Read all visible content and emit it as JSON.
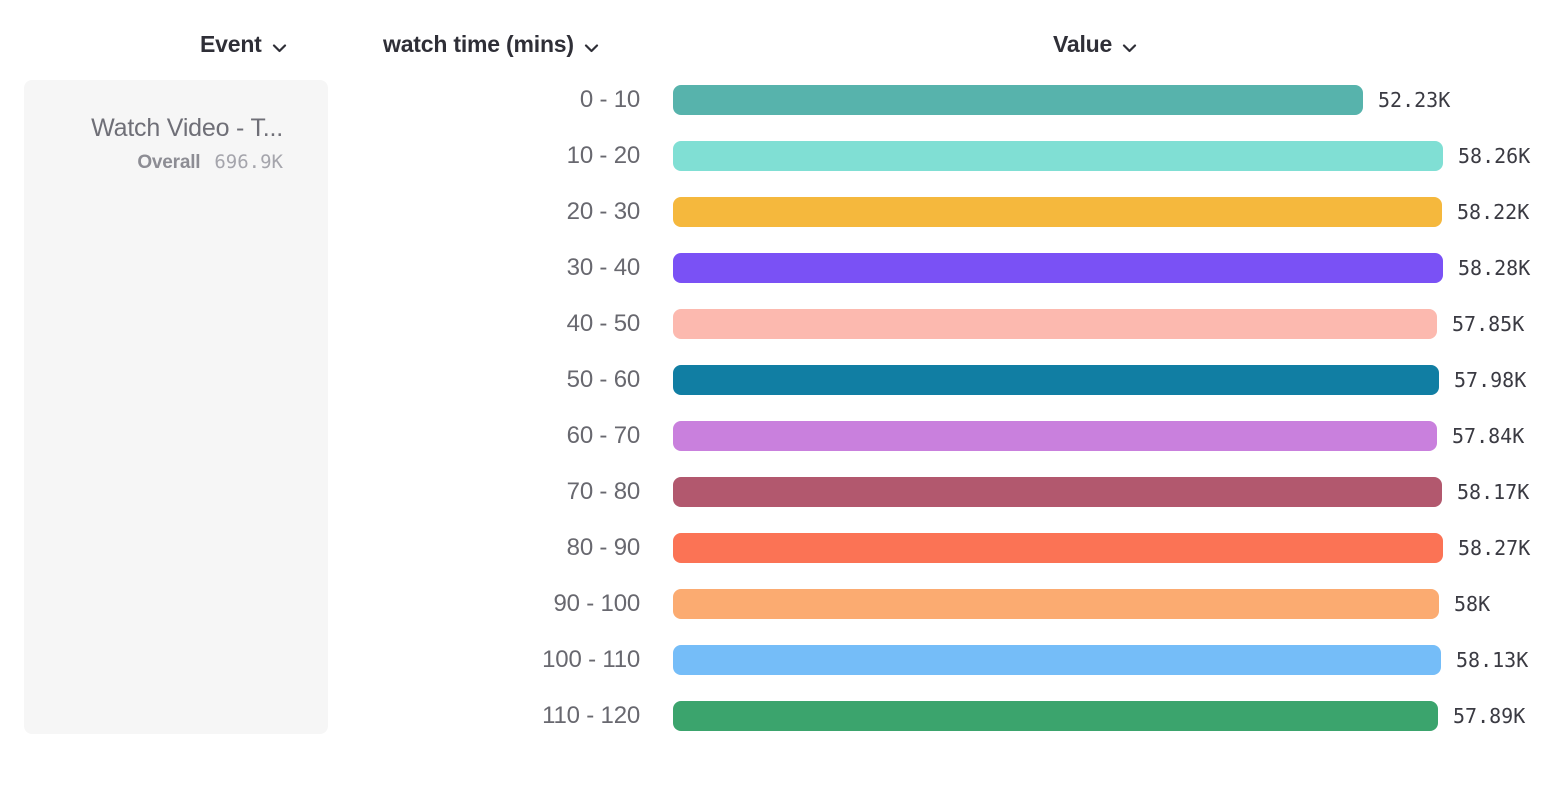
{
  "header": {
    "event_label": "Event",
    "breakdown_label": "watch time (mins)",
    "value_label": "Value"
  },
  "event_card": {
    "title": "Watch Video - T...",
    "overall_label": "Overall",
    "overall_value": "696.9K"
  },
  "chart_data": {
    "type": "bar",
    "orientation": "horizontal",
    "title": "",
    "xlabel": "Value",
    "ylabel": "watch time (mins)",
    "series_name": "Watch Video - T...",
    "overall_total": "696.9K",
    "categories": [
      "0 - 10",
      "10 - 20",
      "20 - 30",
      "30 - 40",
      "40 - 50",
      "50 - 60",
      "60 - 70",
      "70 - 80",
      "80 - 90",
      "90 - 100",
      "100 - 110",
      "110 - 120"
    ],
    "values": [
      52230,
      58260,
      58220,
      58280,
      57850,
      57980,
      57840,
      58170,
      58270,
      58000,
      58130,
      57890
    ],
    "value_labels": [
      "52.23K",
      "58.26K",
      "58.22K",
      "58.28K",
      "57.85K",
      "57.98K",
      "57.84K",
      "58.17K",
      "58.27K",
      "58K",
      "58.13K",
      "57.89K"
    ],
    "bar_colors": [
      "#57b3ac",
      "#80dfd4",
      "#f5b83d",
      "#7a51f5",
      "#fcb9af",
      "#117ea3",
      "#c980dd",
      "#b2586e",
      "#fb7355",
      "#fbab71",
      "#75bdf8",
      "#3ba46d"
    ],
    "xlim": [
      0,
      58280
    ],
    "grid": false,
    "legend": "none"
  },
  "colors": {
    "background": "#ffffff",
    "card_background": "#f6f6f6",
    "header_text": "#2f2f37",
    "category_text": "#68686f",
    "value_text": "#3a3a42",
    "card_title_text": "#6f6f77",
    "overall_label_text": "#8d8d94",
    "overall_value_text": "#a5a5ac"
  }
}
